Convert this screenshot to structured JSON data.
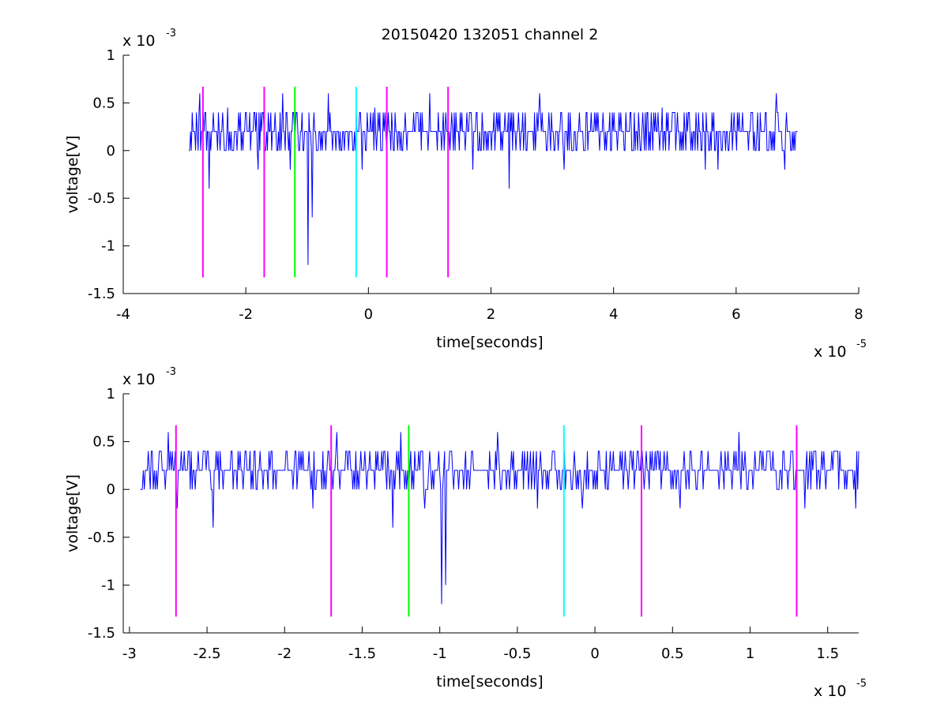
{
  "figure": {
    "title": "20150420 132051 channel 2"
  },
  "chart_data": [
    {
      "type": "line",
      "title": "20150420 132051 channel 2",
      "xlabel": "time[seconds]",
      "ylabel": "voltage[V]",
      "x_multiplier": {
        "base": "x 10",
        "exp": "-5"
      },
      "y_multiplier": {
        "base": "x 10",
        "exp": "-3"
      },
      "xlim": [
        -4,
        8
      ],
      "ylim": [
        -1.5,
        1
      ],
      "xticks": [
        -4,
        -2,
        0,
        2,
        4,
        6,
        8
      ],
      "xtick_labels": [
        "-4",
        "-2",
        "0",
        "2",
        "4",
        "6",
        "8"
      ],
      "yticks": [
        -1.5,
        -1,
        -0.5,
        0,
        0.5,
        1
      ],
      "ytick_labels": [
        "-1.5",
        "-1",
        "-0.5",
        "0",
        "0.5",
        "1"
      ],
      "signal": {
        "color": "#0000ff",
        "x_start": -2.93,
        "x_end": 7.0,
        "levels": [
          0,
          0.2,
          0.4
        ],
        "baseline": 0.2,
        "spikes": [
          {
            "x": -2.75,
            "y": 0.6
          },
          {
            "x": -2.6,
            "y": -0.4
          },
          {
            "x": -2.3,
            "y": 0.45
          },
          {
            "x": -1.8,
            "y": -0.2
          },
          {
            "x": -1.4,
            "y": 0.6
          },
          {
            "x": -1.27,
            "y": -0.2
          },
          {
            "x": -0.98,
            "y": -1.2
          },
          {
            "x": -0.92,
            "y": -0.7
          },
          {
            "x": -0.65,
            "y": 0.6
          },
          {
            "x": -0.1,
            "y": -0.2
          },
          {
            "x": 0.1,
            "y": 0.45
          },
          {
            "x": 1.0,
            "y": 0.6
          },
          {
            "x": 1.7,
            "y": -0.2
          },
          {
            "x": 2.3,
            "y": -0.4
          },
          {
            "x": 2.8,
            "y": 0.6
          },
          {
            "x": 3.2,
            "y": -0.2
          },
          {
            "x": 4.8,
            "y": 0.45
          },
          {
            "x": 5.5,
            "y": -0.2
          },
          {
            "x": 5.7,
            "y": -0.2
          },
          {
            "x": 6.65,
            "y": 0.6
          },
          {
            "x": 6.8,
            "y": -0.2
          }
        ]
      },
      "markers": [
        {
          "x": -2.7,
          "color": "#ff00ff"
        },
        {
          "x": -1.7,
          "color": "#ff00ff"
        },
        {
          "x": -1.2,
          "color": "#00ff00"
        },
        {
          "x": -0.2,
          "color": "#00ffff"
        },
        {
          "x": 0.3,
          "color": "#ff00ff"
        },
        {
          "x": 1.3,
          "color": "#ff00ff"
        }
      ],
      "marker_ylim": [
        -1.33,
        0.67
      ]
    },
    {
      "type": "line",
      "xlabel": "time[seconds]",
      "ylabel": "voltage[V]",
      "x_multiplier": {
        "base": "x 10",
        "exp": "-5"
      },
      "y_multiplier": {
        "base": "x 10",
        "exp": "-3"
      },
      "xlim": [
        -3.04,
        1.7
      ],
      "ylim": [
        -1.5,
        1
      ],
      "xticks": [
        -3,
        -2.5,
        -2,
        -1.5,
        -1,
        -0.5,
        0,
        0.5,
        1,
        1.5
      ],
      "xtick_labels": [
        "-3",
        "-2.5",
        "-2",
        "-1.5",
        "-1",
        "-0.5",
        "0",
        "0.5",
        "1",
        "1.5"
      ],
      "yticks": [
        -1.5,
        -1,
        -0.5,
        0,
        0.5,
        1
      ],
      "ytick_labels": [
        "-1.5",
        "-1",
        "-0.5",
        "0",
        "0.5",
        "1"
      ],
      "signal": {
        "color": "#0000ff",
        "x_start": -2.93,
        "x_end": 1.7,
        "levels": [
          0,
          0.2,
          0.4
        ],
        "baseline": 0.2,
        "spikes": [
          {
            "x": -2.75,
            "y": 0.6
          },
          {
            "x": -2.69,
            "y": -0.2
          },
          {
            "x": -2.46,
            "y": -0.4
          },
          {
            "x": -2.2,
            "y": 0.4
          },
          {
            "x": -1.82,
            "y": -0.2
          },
          {
            "x": -1.72,
            "y": 0.4
          },
          {
            "x": -1.66,
            "y": 0.6
          },
          {
            "x": -1.3,
            "y": -0.4
          },
          {
            "x": -1.25,
            "y": 0.6
          },
          {
            "x": -1.1,
            "y": -0.2
          },
          {
            "x": -0.99,
            "y": -1.2
          },
          {
            "x": -0.96,
            "y": -1.0
          },
          {
            "x": -0.63,
            "y": 0.6
          },
          {
            "x": -0.37,
            "y": -0.2
          },
          {
            "x": -0.2,
            "y": 0.4
          },
          {
            "x": -0.08,
            "y": -0.2
          },
          {
            "x": 0.3,
            "y": 0.4
          },
          {
            "x": 0.55,
            "y": -0.2
          },
          {
            "x": 0.93,
            "y": 0.6
          },
          {
            "x": 1.35,
            "y": -0.2
          },
          {
            "x": 1.68,
            "y": -0.2
          }
        ]
      },
      "markers": [
        {
          "x": -2.7,
          "color": "#ff00ff"
        },
        {
          "x": -1.7,
          "color": "#ff00ff"
        },
        {
          "x": -1.2,
          "color": "#00ff00"
        },
        {
          "x": -0.2,
          "color": "#00ffff"
        },
        {
          "x": 0.3,
          "color": "#ff00ff"
        },
        {
          "x": 1.3,
          "color": "#ff00ff"
        }
      ],
      "marker_ylim": [
        -1.33,
        0.67
      ]
    }
  ]
}
